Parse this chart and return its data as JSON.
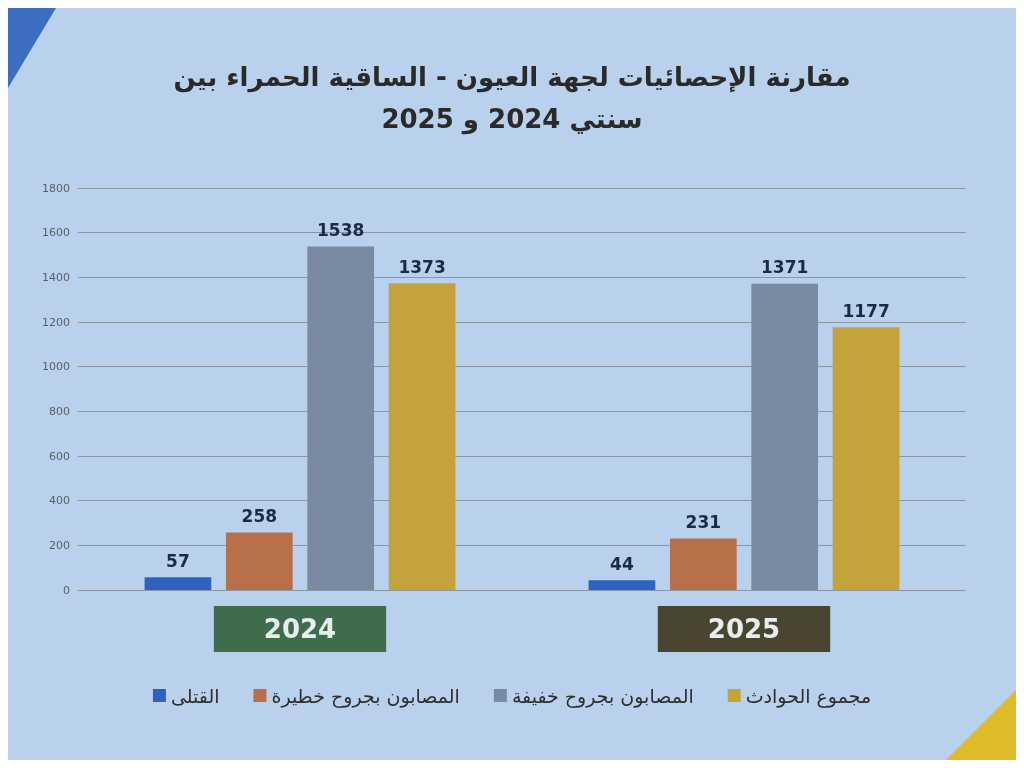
{
  "chart_data": {
    "type": "bar",
    "title": "مقارنة الإحصائيات لجهة العيون - الساقية الحمراء بين سنتي 2024 و 2025",
    "categories": [
      "2024",
      "2025"
    ],
    "series": [
      {
        "name": "القتلى",
        "color": "#2f62c0",
        "values": [
          57,
          44
        ]
      },
      {
        "name": "المصابون بجروح خطيرة",
        "color": "#b8704a",
        "values": [
          258,
          231
        ]
      },
      {
        "name": "المصابون بجروح خفيفة",
        "color": "#7a8aa3",
        "values": [
          1538,
          1371
        ]
      },
      {
        "name": "مجموع الحوادث",
        "color": "#c4a43a",
        "values": [
          1373,
          1177
        ]
      }
    ],
    "ylim": [
      0,
      1800
    ],
    "yticks": [
      0,
      200,
      400,
      600,
      800,
      1000,
      1200,
      1400,
      1600,
      1800
    ],
    "grid": "y",
    "legend": "bottom",
    "data_labels": true
  }
}
